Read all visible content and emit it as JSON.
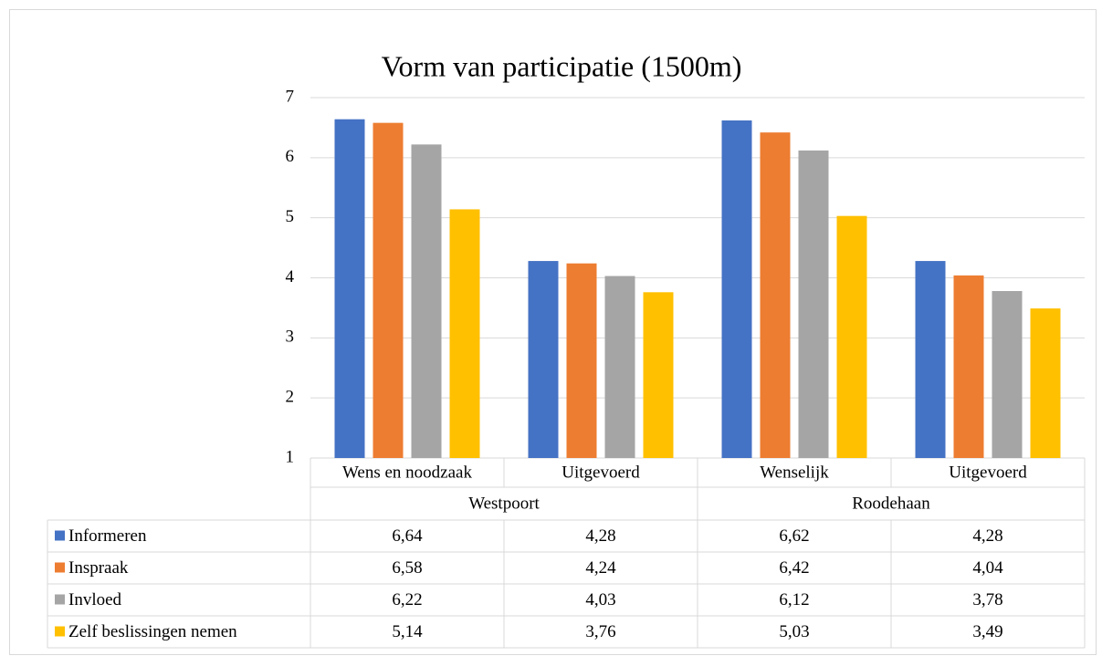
{
  "chart_data": {
    "type": "bar",
    "title": "Vorm van participatie (1500m)",
    "categories": [
      "Wens en noodzaak",
      "Uitgevoerd",
      "Wenselijk",
      "Uitgevoerd"
    ],
    "groups": [
      "Westpoort",
      "Roodehaan"
    ],
    "series": [
      {
        "name": "Informeren",
        "color": "#4472c4",
        "values": [
          6.64,
          4.28,
          6.62,
          4.28
        ],
        "value_labels": [
          "6,64",
          "4,28",
          "6,62",
          "4,28"
        ]
      },
      {
        "name": "Inspraak",
        "color": "#ed7d31",
        "values": [
          6.58,
          4.24,
          6.42,
          4.04
        ],
        "value_labels": [
          "6,58",
          "4,24",
          "6,42",
          "4,04"
        ]
      },
      {
        "name": "Invloed",
        "color": "#a5a5a5",
        "values": [
          6.22,
          4.03,
          6.12,
          3.78
        ],
        "value_labels": [
          "6,22",
          "4,03",
          "6,12",
          "3,78"
        ]
      },
      {
        "name": "Zelf beslissingen nemen",
        "color": "#ffc000",
        "values": [
          5.14,
          3.76,
          5.03,
          3.49
        ],
        "value_labels": [
          "5,14",
          "3,76",
          "5,03",
          "3,49"
        ]
      }
    ],
    "ylim": [
      1,
      7
    ],
    "yticks": [
      1,
      2,
      3,
      4,
      5,
      6,
      7
    ],
    "grid": true
  }
}
